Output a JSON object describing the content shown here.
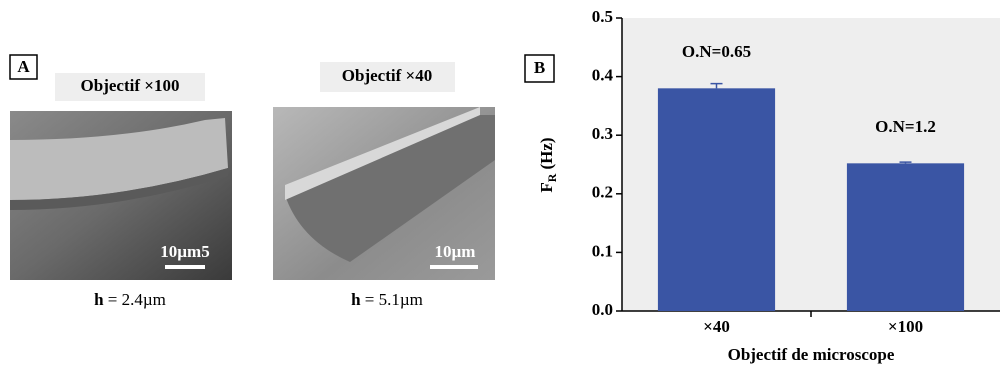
{
  "panel_a": {
    "label": "A",
    "images": [
      {
        "title": "Objectif ×100",
        "scale": "10µm5",
        "caption_var": "h",
        "caption_value": "= 2.4µm"
      },
      {
        "title": "Objectif ×40",
        "scale": "10µm",
        "caption_var": "h",
        "caption_value": "= 5.1µm"
      }
    ]
  },
  "chart_data": {
    "type": "bar",
    "panel_label": "B",
    "categories": [
      "×40",
      "×100"
    ],
    "values": [
      0.38,
      0.252
    ],
    "errors": [
      0.008,
      0.002
    ],
    "annotations": [
      "O.N=0.65",
      "O.N=1.2"
    ],
    "color": "#3a55a4",
    "xlabel": "Objectif de microscope",
    "ylabel": "F",
    "ylabel_sub": "R",
    "ylabel_unit": "(Hz)",
    "ylim": [
      0,
      0.5
    ],
    "yticks": [
      {
        "value": 0,
        "label": "0.0"
      },
      0.1,
      0.2,
      0.3,
      0.4,
      0.5
    ]
  }
}
